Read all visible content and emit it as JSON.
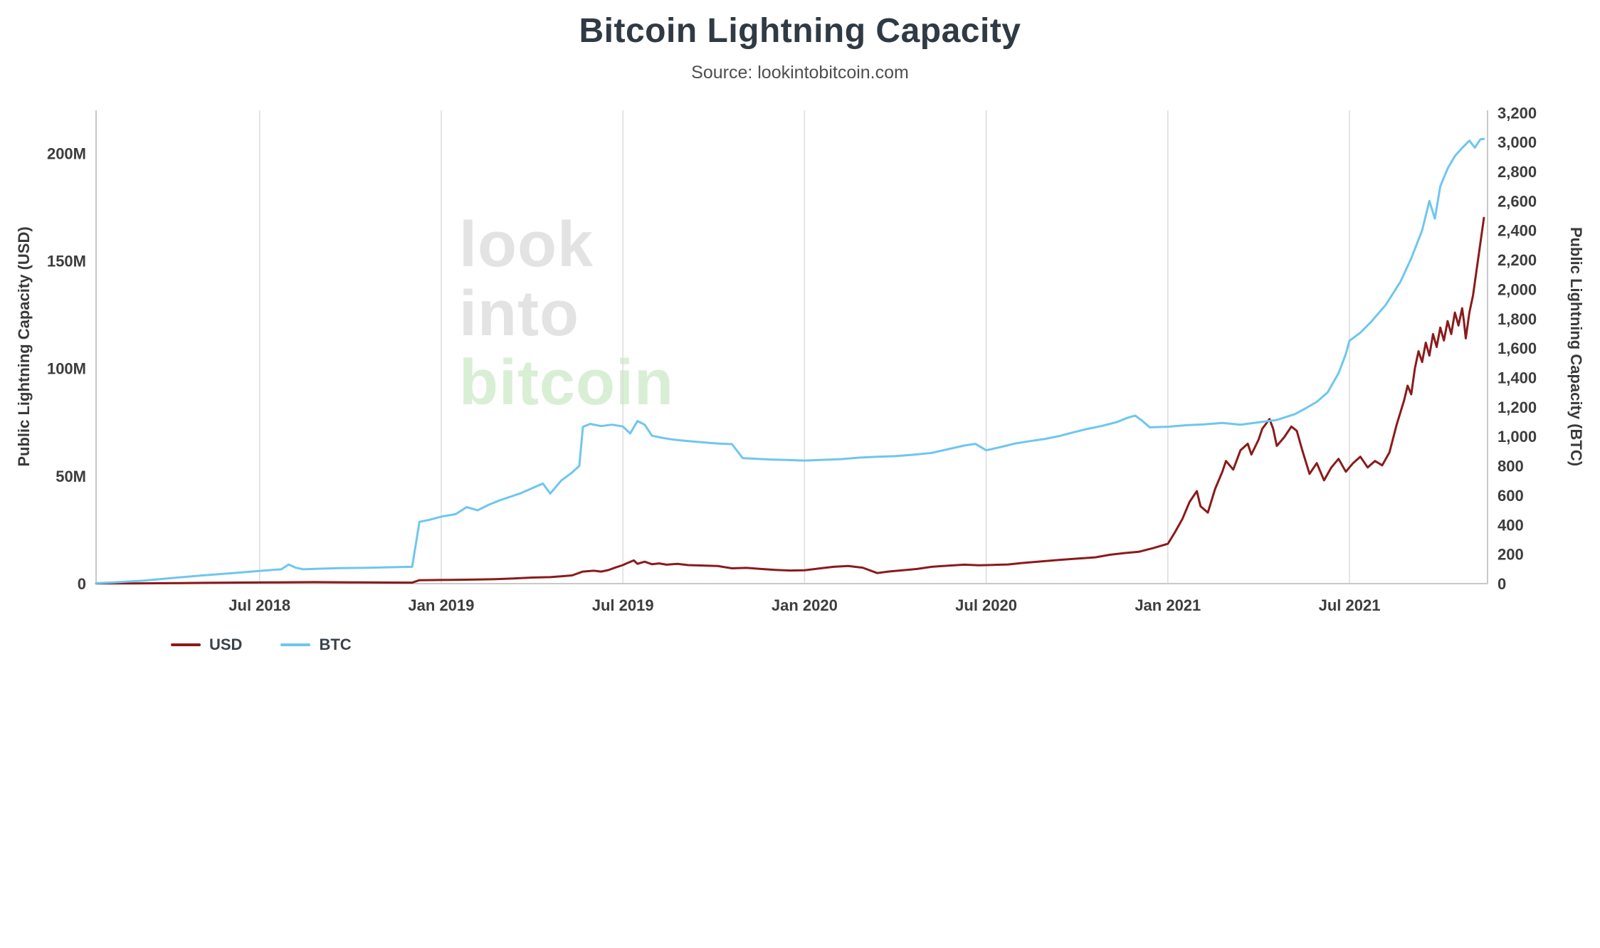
{
  "header": {
    "title": "Bitcoin Lightning Capacity",
    "subtitle": "Source: lookintobitcoin.com"
  },
  "watermark": {
    "lines": [
      {
        "text": "look",
        "color": "#e3e3e3"
      },
      {
        "text": "into",
        "color": "#e3e3e3"
      },
      {
        "text": "bitcoin",
        "color": "#d9efd5"
      }
    ]
  },
  "legend": [
    {
      "label": "USD",
      "color": "#8b1a1a"
    },
    {
      "label": "BTC",
      "color": "#6ec6f0"
    }
  ],
  "chart_data": {
    "type": "line",
    "title": "Bitcoin Lightning Capacity",
    "subtitle": "Source: lookintobitcoin.com",
    "legend_position": "bottom-left",
    "grid": {
      "vertical": true,
      "horizontal": false
    },
    "x_domain": [
      2018.05,
      2021.88
    ],
    "x_ticks": [
      {
        "value": 2018.5,
        "label": "Jul 2018"
      },
      {
        "value": 2019.0,
        "label": "Jan 2019"
      },
      {
        "value": 2019.5,
        "label": "Jul 2019"
      },
      {
        "value": 2020.0,
        "label": "Jan 2020"
      },
      {
        "value": 2020.5,
        "label": "Jul 2020"
      },
      {
        "value": 2021.0,
        "label": "Jan 2021"
      },
      {
        "value": 2021.5,
        "label": "Jul 2021"
      }
    ],
    "y_left": {
      "label": "Public Lightning Capacity (USD)",
      "unit": "million USD",
      "max": 220,
      "ticks": [
        {
          "value": 0,
          "label": "0"
        },
        {
          "value": 50,
          "label": "50M"
        },
        {
          "value": 100,
          "label": "100M"
        },
        {
          "value": 150,
          "label": "150M"
        },
        {
          "value": 200,
          "label": "200M"
        }
      ]
    },
    "y_right": {
      "label": "Public Lightning Capacity (BTC)",
      "unit": "BTC",
      "max": 3216,
      "ticks": [
        {
          "value": 0,
          "label": "0"
        },
        {
          "value": 200,
          "label": "200"
        },
        {
          "value": 400,
          "label": "400"
        },
        {
          "value": 600,
          "label": "600"
        },
        {
          "value": 800,
          "label": "800"
        },
        {
          "value": 1000,
          "label": "1,000"
        },
        {
          "value": 1200,
          "label": "1,200"
        },
        {
          "value": 1400,
          "label": "1,400"
        },
        {
          "value": 1600,
          "label": "1,600"
        },
        {
          "value": 1800,
          "label": "1,800"
        },
        {
          "value": 2000,
          "label": "2,000"
        },
        {
          "value": 2200,
          "label": "2,200"
        },
        {
          "value": 2400,
          "label": "2,400"
        },
        {
          "value": 2600,
          "label": "2,600"
        },
        {
          "value": 2800,
          "label": "2,800"
        },
        {
          "value": 3000,
          "label": "3,000"
        },
        {
          "value": 3200,
          "label": "3,200"
        }
      ]
    },
    "series": [
      {
        "name": "USD",
        "axis": "left",
        "color": "#8b1a1a",
        "points": [
          [
            2018.05,
            0.05
          ],
          [
            2018.15,
            0.1
          ],
          [
            2018.25,
            0.2
          ],
          [
            2018.35,
            0.35
          ],
          [
            2018.45,
            0.5
          ],
          [
            2018.55,
            0.6
          ],
          [
            2018.65,
            0.7
          ],
          [
            2018.75,
            0.6
          ],
          [
            2018.85,
            0.5
          ],
          [
            2018.92,
            0.45
          ],
          [
            2018.94,
            1.6
          ],
          [
            2019.0,
            1.7
          ],
          [
            2019.05,
            1.8
          ],
          [
            2019.1,
            1.9
          ],
          [
            2019.15,
            2.1
          ],
          [
            2019.2,
            2.4
          ],
          [
            2019.25,
            2.8
          ],
          [
            2019.3,
            3.0
          ],
          [
            2019.33,
            3.4
          ],
          [
            2019.36,
            3.8
          ],
          [
            2019.39,
            5.6
          ],
          [
            2019.42,
            6.0
          ],
          [
            2019.44,
            5.6
          ],
          [
            2019.46,
            6.3
          ],
          [
            2019.48,
            7.5
          ],
          [
            2019.5,
            8.6
          ],
          [
            2019.51,
            9.4
          ],
          [
            2019.53,
            10.8
          ],
          [
            2019.54,
            9.2
          ],
          [
            2019.56,
            10.2
          ],
          [
            2019.58,
            9.0
          ],
          [
            2019.6,
            9.4
          ],
          [
            2019.62,
            8.8
          ],
          [
            2019.65,
            9.2
          ],
          [
            2019.68,
            8.6
          ],
          [
            2019.72,
            8.4
          ],
          [
            2019.76,
            8.2
          ],
          [
            2019.8,
            7.1
          ],
          [
            2019.84,
            7.3
          ],
          [
            2019.88,
            6.8
          ],
          [
            2019.92,
            6.4
          ],
          [
            2019.96,
            6.1
          ],
          [
            2020.0,
            6.2
          ],
          [
            2020.04,
            7.0
          ],
          [
            2020.08,
            7.8
          ],
          [
            2020.12,
            8.2
          ],
          [
            2020.16,
            7.4
          ],
          [
            2020.2,
            4.9
          ],
          [
            2020.23,
            5.6
          ],
          [
            2020.27,
            6.2
          ],
          [
            2020.31,
            6.8
          ],
          [
            2020.35,
            7.8
          ],
          [
            2020.4,
            8.4
          ],
          [
            2020.44,
            8.8
          ],
          [
            2020.48,
            8.5
          ],
          [
            2020.52,
            8.7
          ],
          [
            2020.56,
            8.9
          ],
          [
            2020.6,
            9.6
          ],
          [
            2020.65,
            10.3
          ],
          [
            2020.7,
            11.0
          ],
          [
            2020.75,
            11.6
          ],
          [
            2020.8,
            12.2
          ],
          [
            2020.84,
            13.4
          ],
          [
            2020.88,
            14.2
          ],
          [
            2020.92,
            14.8
          ],
          [
            2020.96,
            16.5
          ],
          [
            2021.0,
            18.5
          ],
          [
            2021.02,
            24
          ],
          [
            2021.04,
            30
          ],
          [
            2021.06,
            38
          ],
          [
            2021.08,
            43
          ],
          [
            2021.09,
            36
          ],
          [
            2021.11,
            33
          ],
          [
            2021.13,
            44
          ],
          [
            2021.15,
            52
          ],
          [
            2021.16,
            57
          ],
          [
            2021.18,
            53
          ],
          [
            2021.2,
            62
          ],
          [
            2021.22,
            65
          ],
          [
            2021.23,
            60
          ],
          [
            2021.25,
            67
          ],
          [
            2021.26,
            72
          ],
          [
            2021.28,
            76.5
          ],
          [
            2021.29,
            72
          ],
          [
            2021.3,
            64
          ],
          [
            2021.32,
            68
          ],
          [
            2021.34,
            73
          ],
          [
            2021.355,
            71
          ],
          [
            2021.37,
            62
          ],
          [
            2021.39,
            51
          ],
          [
            2021.41,
            56
          ],
          [
            2021.43,
            48
          ],
          [
            2021.45,
            54
          ],
          [
            2021.47,
            58
          ],
          [
            2021.49,
            52
          ],
          [
            2021.51,
            56
          ],
          [
            2021.53,
            59
          ],
          [
            2021.55,
            54
          ],
          [
            2021.57,
            57
          ],
          [
            2021.59,
            55
          ],
          [
            2021.61,
            61
          ],
          [
            2021.63,
            74
          ],
          [
            2021.65,
            85
          ],
          [
            2021.66,
            92
          ],
          [
            2021.67,
            88
          ],
          [
            2021.68,
            100
          ],
          [
            2021.69,
            108
          ],
          [
            2021.7,
            103
          ],
          [
            2021.71,
            112
          ],
          [
            2021.72,
            106
          ],
          [
            2021.73,
            116
          ],
          [
            2021.74,
            110
          ],
          [
            2021.75,
            119
          ],
          [
            2021.76,
            113
          ],
          [
            2021.77,
            122
          ],
          [
            2021.78,
            116
          ],
          [
            2021.79,
            126
          ],
          [
            2021.8,
            120
          ],
          [
            2021.81,
            128
          ],
          [
            2021.815,
            122
          ],
          [
            2021.82,
            114
          ],
          [
            2021.83,
            126
          ],
          [
            2021.84,
            134
          ],
          [
            2021.85,
            146
          ],
          [
            2021.86,
            158
          ],
          [
            2021.87,
            170
          ]
        ]
      },
      {
        "name": "BTC",
        "axis": "right",
        "color": "#6ec6f0",
        "points": [
          [
            2018.05,
            3
          ],
          [
            2018.1,
            8
          ],
          [
            2018.18,
            20
          ],
          [
            2018.26,
            38
          ],
          [
            2018.34,
            55
          ],
          [
            2018.42,
            70
          ],
          [
            2018.48,
            82
          ],
          [
            2018.53,
            92
          ],
          [
            2018.56,
            97
          ],
          [
            2018.58,
            130
          ],
          [
            2018.6,
            108
          ],
          [
            2018.62,
            97
          ],
          [
            2018.66,
            101
          ],
          [
            2018.72,
            105
          ],
          [
            2018.8,
            108
          ],
          [
            2018.88,
            112
          ],
          [
            2018.92,
            114
          ],
          [
            2018.94,
            420
          ],
          [
            2018.97,
            435
          ],
          [
            2019.0,
            455
          ],
          [
            2019.04,
            472
          ],
          [
            2019.07,
            520
          ],
          [
            2019.1,
            498
          ],
          [
            2019.13,
            535
          ],
          [
            2019.16,
            565
          ],
          [
            2019.19,
            590
          ],
          [
            2019.22,
            615
          ],
          [
            2019.25,
            648
          ],
          [
            2019.28,
            680
          ],
          [
            2019.3,
            612
          ],
          [
            2019.33,
            700
          ],
          [
            2019.36,
            755
          ],
          [
            2019.38,
            800
          ],
          [
            2019.39,
            1065
          ],
          [
            2019.41,
            1085
          ],
          [
            2019.44,
            1070
          ],
          [
            2019.47,
            1080
          ],
          [
            2019.5,
            1068
          ],
          [
            2019.52,
            1020
          ],
          [
            2019.54,
            1105
          ],
          [
            2019.56,
            1080
          ],
          [
            2019.58,
            1005
          ],
          [
            2019.61,
            990
          ],
          [
            2019.64,
            978
          ],
          [
            2019.68,
            968
          ],
          [
            2019.72,
            960
          ],
          [
            2019.76,
            952
          ],
          [
            2019.8,
            948
          ],
          [
            2019.83,
            852
          ],
          [
            2019.87,
            848
          ],
          [
            2019.91,
            843
          ],
          [
            2019.95,
            840
          ],
          [
            2020.0,
            836
          ],
          [
            2020.05,
            841
          ],
          [
            2020.1,
            846
          ],
          [
            2020.15,
            856
          ],
          [
            2020.2,
            862
          ],
          [
            2020.25,
            866
          ],
          [
            2020.3,
            876
          ],
          [
            2020.35,
            888
          ],
          [
            2020.4,
            916
          ],
          [
            2020.44,
            938
          ],
          [
            2020.47,
            950
          ],
          [
            2020.5,
            906
          ],
          [
            2020.54,
            928
          ],
          [
            2020.58,
            952
          ],
          [
            2020.62,
            968
          ],
          [
            2020.66,
            982
          ],
          [
            2020.7,
            1002
          ],
          [
            2020.74,
            1028
          ],
          [
            2020.78,
            1052
          ],
          [
            2020.82,
            1072
          ],
          [
            2020.86,
            1098
          ],
          [
            2020.89,
            1128
          ],
          [
            2020.91,
            1142
          ],
          [
            2020.93,
            1105
          ],
          [
            2020.95,
            1062
          ],
          [
            2021.0,
            1066
          ],
          [
            2021.05,
            1076
          ],
          [
            2021.1,
            1082
          ],
          [
            2021.15,
            1092
          ],
          [
            2021.2,
            1080
          ],
          [
            2021.25,
            1096
          ],
          [
            2021.3,
            1112
          ],
          [
            2021.35,
            1152
          ],
          [
            2021.38,
            1192
          ],
          [
            2021.41,
            1235
          ],
          [
            2021.44,
            1300
          ],
          [
            2021.47,
            1430
          ],
          [
            2021.49,
            1560
          ],
          [
            2021.5,
            1650
          ],
          [
            2021.53,
            1705
          ],
          [
            2021.56,
            1780
          ],
          [
            2021.6,
            1895
          ],
          [
            2021.64,
            2050
          ],
          [
            2021.67,
            2210
          ],
          [
            2021.7,
            2400
          ],
          [
            2021.72,
            2600
          ],
          [
            2021.735,
            2480
          ],
          [
            2021.75,
            2700
          ],
          [
            2021.77,
            2820
          ],
          [
            2021.79,
            2905
          ],
          [
            2021.81,
            2960
          ],
          [
            2021.83,
            3010
          ],
          [
            2021.845,
            2962
          ],
          [
            2021.86,
            3018
          ],
          [
            2021.87,
            3022
          ]
        ]
      }
    ]
  }
}
